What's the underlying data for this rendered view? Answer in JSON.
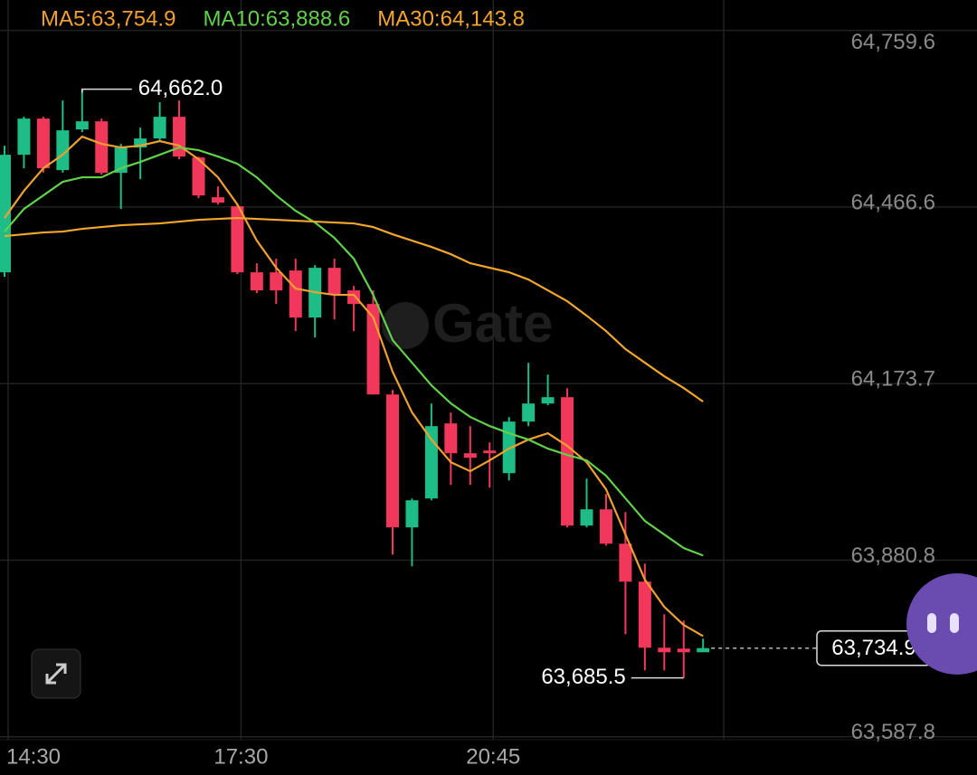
{
  "chart_data": {
    "type": "candlestick",
    "watermark": "Gate",
    "categories": [
      "14:30",
      null,
      null,
      null,
      null,
      null,
      null,
      null,
      null,
      null,
      null,
      null,
      "17:30",
      null,
      null,
      null,
      null,
      null,
      null,
      null,
      null,
      null,
      null,
      null,
      null,
      "20:45",
      null,
      null,
      null,
      null,
      null,
      null,
      null,
      null,
      null,
      null,
      null
    ],
    "open": [
      64358.3,
      64553.3,
      64613.3,
      64527.8,
      64595.3,
      64608.8,
      64523.3,
      64565.3,
      64580.3,
      64616.3,
      64548.8,
      64482.8,
      64467.8,
      64358.3,
      64358.3,
      64361.3,
      64283.3,
      64365.8,
      64328.3,
      64305.8,
      64155.7,
      63935.2,
      63983.2,
      64107.7,
      64058.2,
      64062.7,
      64025.2,
      64110.7,
      64140.7,
      64151.2,
      63938.2,
      63965.2,
      63908.2,
      63845.2,
      63735.6,
      63734.1,
      63728.1
    ],
    "high": [
      64568.3,
      64616.4,
      64616.4,
      64643.4,
      64662.0,
      64613.3,
      64571.3,
      64598.3,
      64640.4,
      64643.4,
      64550.3,
      64500.8,
      64470.8,
      64373.3,
      64380.8,
      64380.8,
      64370.3,
      64380.8,
      64335.8,
      64328.3,
      64163.2,
      63983.2,
      64140.7,
      64125.7,
      64103.2,
      64076.2,
      64118.2,
      64208.2,
      64188.7,
      64166.2,
      64016.2,
      63990.7,
      63960.7,
      63875.1,
      63791.1,
      63780.6,
      63750.6
    ],
    "low": [
      64350.8,
      64530.8,
      64523.6,
      64523.6,
      64590.8,
      64520.3,
      64463.3,
      64512.8,
      64575.8,
      64545.8,
      64481.3,
      64470.8,
      64355.3,
      64323.8,
      64305.8,
      64260.8,
      64250.3,
      64280.3,
      64260.8,
      64155.7,
      63890.2,
      63870.6,
      63980.2,
      64005.7,
      64005.7,
      64001.2,
      64013.2,
      64103.2,
      64137.7,
      63935.2,
      63935.2,
      63905.2,
      63758.1,
      63698.1,
      63698.1,
      63685.5,
      63728.1
    ],
    "close": [
      64553.3,
      64613.3,
      64530.8,
      64593.8,
      64608.8,
      64523.3,
      64565.3,
      64580.3,
      64616.3,
      64550.3,
      64485.8,
      64473.8,
      64358.3,
      64328.3,
      64328.3,
      64283.3,
      64365.8,
      64320.8,
      64305.8,
      64155.7,
      63935.2,
      63980.2,
      64103.2,
      64058.2,
      64050.7,
      64058.2,
      64110.7,
      64140.7,
      64151.2,
      63938.2,
      63965.2,
      63908.2,
      63845.2,
      63735.6,
      63728.1,
      63728.1,
      63734.9
    ],
    "up_color": "#1ebc86",
    "down_color": "#f2385a",
    "series": [
      {
        "name": "MA5:63,754.9",
        "color": "#f0a030",
        "values": [
          64448.4,
          64493.4,
          64530.9,
          64553.4,
          64583.4,
          64571.4,
          64565.4,
          64568.4,
          64575.9,
          64568.4,
          64545.9,
          64515.9,
          64470.9,
          64410.9,
          64365.9,
          64331.4,
          64325.4,
          64320.9,
          64320.9,
          64283.4,
          64193.4,
          64125.9,
          64080.9,
          64043.4,
          64028.4,
          64046.4,
          64065.9,
          64080.9,
          64091.4,
          64070.4,
          64043.4,
          63998.4,
          63923.4,
          63848.4,
          63803.4,
          63773.4,
          63754.9
        ]
      },
      {
        "name": "MA10:63,888.6",
        "color": "#62d04a",
        "values": [
          64425.9,
          64463.4,
          64485.9,
          64508.4,
          64515.9,
          64515.9,
          64530.9,
          64541.4,
          64553.4,
          64565.4,
          64560.9,
          64550.4,
          64538.4,
          64515.9,
          64485.9,
          64460.4,
          64440.9,
          64415.4,
          64380.9,
          64320.9,
          64245.9,
          64208.4,
          64170.9,
          64140.9,
          64118.4,
          64103.4,
          64091.4,
          64080.9,
          64065.9,
          64055.4,
          64046.4,
          64020.9,
          63983.4,
          63945.9,
          63923.4,
          63900.9,
          63888.6
        ]
      },
      {
        "name": "MA30:64,143.8",
        "color": "#f2a72c",
        "values": [
          64418.4,
          64421.4,
          64424.4,
          64425.9,
          64430.4,
          64433.4,
          64436.4,
          64437.9,
          64439.4,
          64442.4,
          64445.4,
          64446.9,
          64448.4,
          64446.9,
          64445.4,
          64443.9,
          64442.4,
          64440.9,
          64439.4,
          64433.4,
          64421.4,
          64410.9,
          64400.4,
          64388.4,
          64373.4,
          64365.9,
          64358.4,
          64346.4,
          64328.4,
          64310.4,
          64286.4,
          64260.9,
          64230.9,
          64208.4,
          64185.9,
          64166.4,
          64143.8
        ]
      }
    ],
    "ylim": [
      63580,
      64810
    ],
    "yticks": [
      {
        "value": 64759.6,
        "label": "64,759.6"
      },
      {
        "value": 64466.6,
        "label": "64,466.6"
      },
      {
        "value": 64173.7,
        "label": "64,173.7"
      },
      {
        "value": 63880.8,
        "label": "63,880.8"
      },
      {
        "value": 63587.8,
        "label": "63,587.8"
      }
    ],
    "grid": true,
    "high_marker": {
      "value": 64662.0,
      "label": "64,662.0"
    },
    "low_marker": {
      "value": 63685.5,
      "label": "63,685.5"
    },
    "last_price": {
      "value": 63734.9,
      "label": "63,734.9"
    }
  }
}
